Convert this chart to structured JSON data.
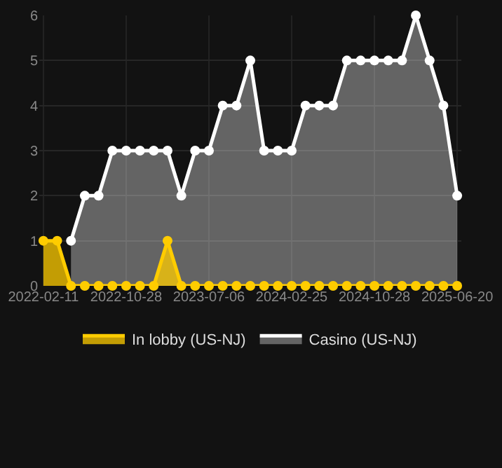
{
  "chart_data": {
    "type": "area",
    "categories": [
      "2022-02-11",
      null,
      null,
      null,
      null,
      null,
      "2022-10-28",
      null,
      null,
      null,
      null,
      null,
      "2023-07-06",
      null,
      null,
      null,
      null,
      null,
      "2024-02-25",
      null,
      null,
      null,
      null,
      null,
      "2024-10-28",
      null,
      null,
      null,
      null,
      null,
      "2025-06-20"
    ],
    "series": [
      {
        "name": "In lobby (US-NJ)",
        "color": "#ffcc00",
        "values": [
          1,
          1,
          0,
          0,
          0,
          0,
          0,
          0,
          0,
          1,
          0,
          0,
          0,
          0,
          0,
          0,
          0,
          0,
          0,
          0,
          0,
          0,
          0,
          0,
          0,
          0,
          0,
          0,
          0,
          0,
          0
        ]
      },
      {
        "name": "Casino (US-NJ)",
        "color": "#ffffff",
        "values": [
          null,
          null,
          1,
          2,
          2,
          3,
          3,
          3,
          3,
          3,
          2,
          3,
          3,
          4,
          4,
          5,
          3,
          3,
          3,
          4,
          4,
          4,
          5,
          5,
          5,
          5,
          5,
          6,
          5,
          4,
          2
        ]
      }
    ],
    "ylim": [
      0,
      6
    ],
    "yticks": [
      0,
      1,
      2,
      3,
      4,
      5,
      6
    ],
    "grid": true,
    "legend": "bottom",
    "marker": "circle"
  }
}
